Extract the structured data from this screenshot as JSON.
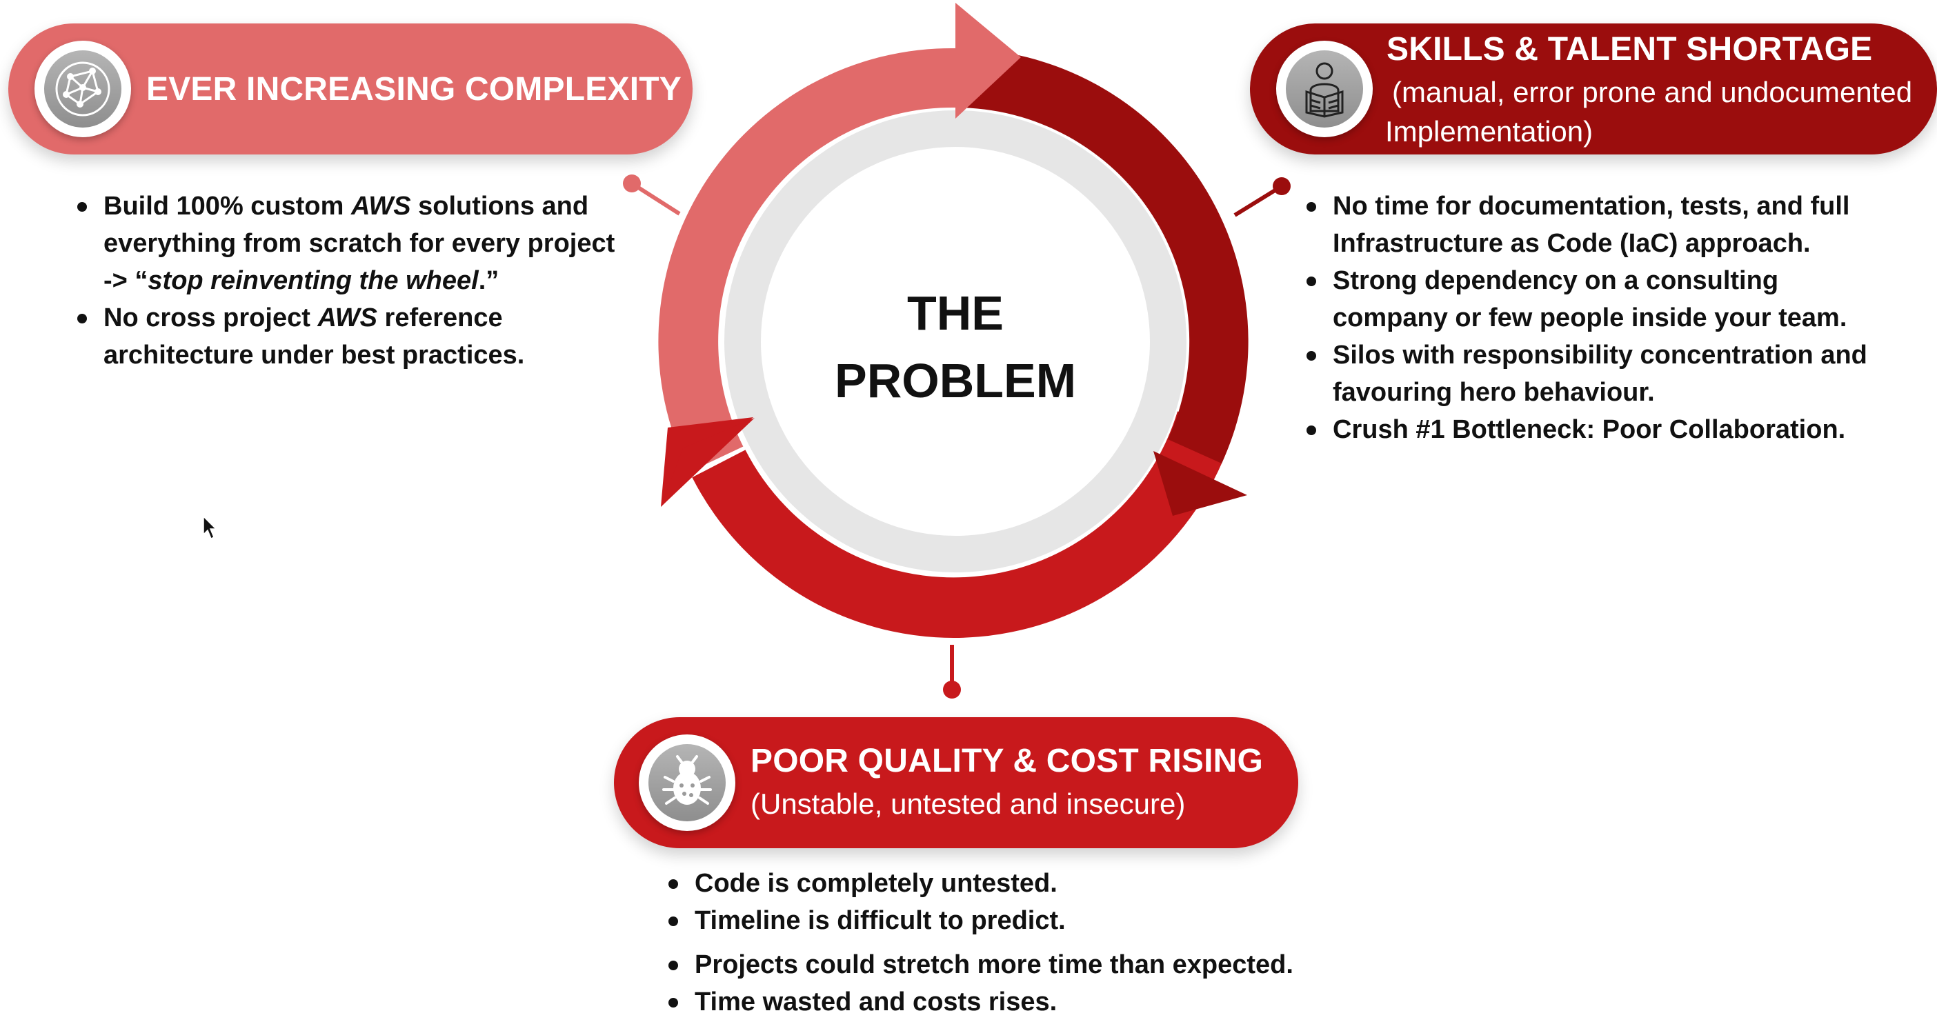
{
  "center": {
    "line1": "THE",
    "line2": "PROBLEM"
  },
  "colors": {
    "light_red": "#e16a6a",
    "dark_red": "#9b0d0d",
    "mid_red": "#c8191c",
    "inner_ring": "#e6e6e6"
  },
  "complexity": {
    "icon": "network-icon",
    "title": "EVER INCREASING COMPLEXITY",
    "bullets": [
      {
        "parts": [
          "Build 100% custom ",
          "AWS",
          " solutions and"
        ],
        "cont": "everything from scratch for every project",
        "cont2_pre": "-> “",
        "cont2_italic": "stop reinventing the wheel",
        "cont2_post": ".”"
      },
      {
        "parts": [
          "No cross project ",
          "AWS",
          " reference"
        ],
        "cont": "architecture under best practices."
      }
    ]
  },
  "skills": {
    "icon": "person-reading-icon",
    "title": "SKILLS & TALENT SHORTAGE",
    "subtitle_line1": "(manual, error prone and undocumented",
    "subtitle_line2": "Implementation)",
    "bullets": [
      {
        "line1": "No time for documentation, tests, and full",
        "line2": "Infrastructure as Code (IaC) approach."
      },
      {
        "line1": "Strong dependency on a consulting",
        "line2": "company or few people inside your team."
      },
      {
        "line1": "Silos with responsibility concentration and",
        "line2": "favouring hero behaviour."
      },
      {
        "line1": "Crush #1 Bottleneck: Poor Collaboration."
      }
    ]
  },
  "quality": {
    "icon": "bug-icon",
    "title": "POOR QUALITY & COST RISING",
    "subtitle": "(Unstable, untested and insecure)",
    "bullets": [
      "Code is completely untested.",
      "Timeline is difficult to predict.",
      "Projects could stretch more time than expected.",
      "Time wasted and costs rises."
    ]
  }
}
